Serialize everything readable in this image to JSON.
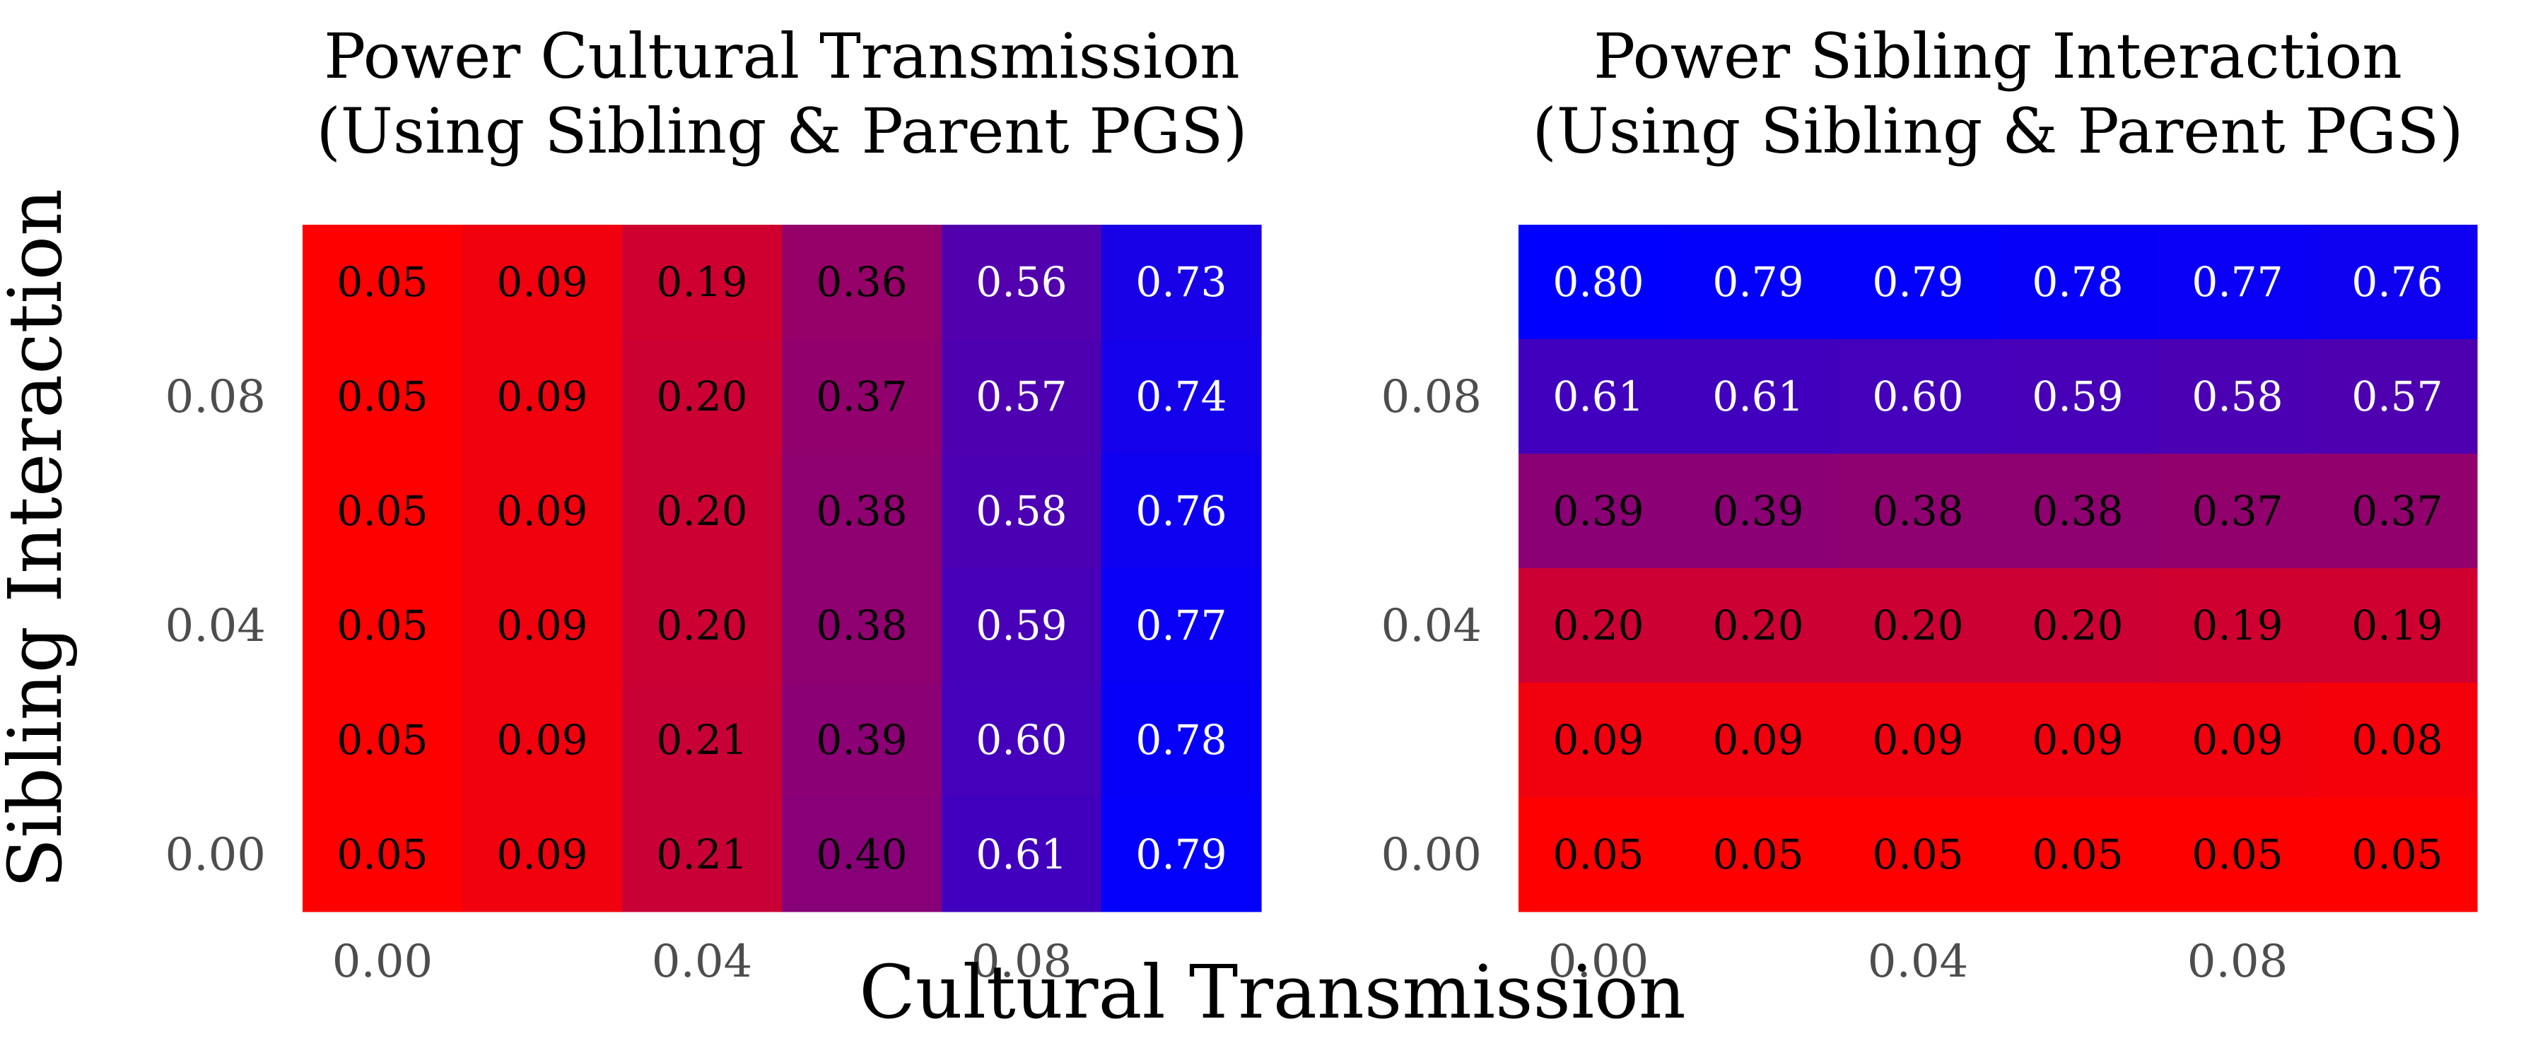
{
  "axis_titles": {
    "x": "Cultural Transmission",
    "y": "Sibling Interaction"
  },
  "chart_data": [
    {
      "type": "heatmap",
      "title_lines": [
        "Power Cultural Transmission",
        "(Using Sibling & Parent PGS)"
      ],
      "xlabel": "Cultural Transmission",
      "ylabel": "Sibling Interaction",
      "x_values": [
        0.0,
        0.02,
        0.04,
        0.06,
        0.08,
        0.1
      ],
      "y_values": [
        0.0,
        0.02,
        0.04,
        0.06,
        0.08,
        0.1
      ],
      "x_tick_labels": [
        {
          "value": 0.0,
          "label": "0.00"
        },
        {
          "value": 0.04,
          "label": "0.04"
        },
        {
          "value": 0.08,
          "label": "0.08"
        }
      ],
      "y_tick_labels": [
        {
          "value": 0.0,
          "label": "0.00"
        },
        {
          "value": 0.04,
          "label": "0.04"
        },
        {
          "value": 0.08,
          "label": "0.08"
        }
      ],
      "values": [
        [
          0.05,
          0.09,
          0.19,
          0.36,
          0.56,
          0.73
        ],
        [
          0.05,
          0.09,
          0.2,
          0.37,
          0.57,
          0.74
        ],
        [
          0.05,
          0.09,
          0.2,
          0.38,
          0.58,
          0.76
        ],
        [
          0.05,
          0.09,
          0.2,
          0.38,
          0.59,
          0.77
        ],
        [
          0.05,
          0.09,
          0.21,
          0.39,
          0.6,
          0.78
        ],
        [
          0.05,
          0.09,
          0.21,
          0.4,
          0.61,
          0.79
        ]
      ],
      "value_labels": [
        [
          "0.05",
          "0.09",
          "0.19",
          "0.36",
          "0.56",
          "0.73"
        ],
        [
          "0.05",
          "0.09",
          "0.20",
          "0.37",
          "0.57",
          "0.74"
        ],
        [
          "0.05",
          "0.09",
          "0.20",
          "0.38",
          "0.58",
          "0.76"
        ],
        [
          "0.05",
          "0.09",
          "0.20",
          "0.38",
          "0.59",
          "0.77"
        ],
        [
          "0.05",
          "0.09",
          "0.21",
          "0.39",
          "0.60",
          "0.78"
        ],
        [
          "0.05",
          "0.09",
          "0.21",
          "0.40",
          "0.61",
          "0.79"
        ]
      ],
      "row_order": "top-to-bottom (y = 0.10 at top, y = 0.00 at bottom)",
      "color_scale": {
        "low": "#ff0000",
        "high": "#0000ff",
        "range": [
          0.05,
          0.8
        ]
      },
      "grid": false,
      "legend": "none"
    },
    {
      "type": "heatmap",
      "title_lines": [
        "Power Sibling Interaction",
        "(Using Sibling & Parent PGS)"
      ],
      "xlabel": "Cultural Transmission",
      "ylabel": "Sibling Interaction",
      "x_values": [
        0.0,
        0.02,
        0.04,
        0.06,
        0.08,
        0.1
      ],
      "y_values": [
        0.0,
        0.02,
        0.04,
        0.06,
        0.08,
        0.1
      ],
      "x_tick_labels": [
        {
          "value": 0.0,
          "label": "0.00"
        },
        {
          "value": 0.04,
          "label": "0.04"
        },
        {
          "value": 0.08,
          "label": "0.08"
        }
      ],
      "y_tick_labels": [
        {
          "value": 0.0,
          "label": "0.00"
        },
        {
          "value": 0.04,
          "label": "0.04"
        },
        {
          "value": 0.08,
          "label": "0.08"
        }
      ],
      "values": [
        [
          0.8,
          0.79,
          0.79,
          0.78,
          0.77,
          0.76
        ],
        [
          0.61,
          0.61,
          0.6,
          0.59,
          0.58,
          0.57
        ],
        [
          0.39,
          0.39,
          0.38,
          0.38,
          0.37,
          0.37
        ],
        [
          0.2,
          0.2,
          0.2,
          0.2,
          0.19,
          0.19
        ],
        [
          0.09,
          0.09,
          0.09,
          0.09,
          0.09,
          0.08
        ],
        [
          0.05,
          0.05,
          0.05,
          0.05,
          0.05,
          0.05
        ]
      ],
      "value_labels": [
        [
          "0.80",
          "0.79",
          "0.79",
          "0.78",
          "0.77",
          "0.76"
        ],
        [
          "0.61",
          "0.61",
          "0.60",
          "0.59",
          "0.58",
          "0.57"
        ],
        [
          "0.39",
          "0.39",
          "0.38",
          "0.38",
          "0.37",
          "0.37"
        ],
        [
          "0.20",
          "0.20",
          "0.20",
          "0.20",
          "0.19",
          "0.19"
        ],
        [
          "0.09",
          "0.09",
          "0.09",
          "0.09",
          "0.09",
          "0.08"
        ],
        [
          "0.05",
          "0.05",
          "0.05",
          "0.05",
          "0.05",
          "0.05"
        ]
      ],
      "row_order": "top-to-bottom (y = 0.10 at top, y = 0.00 at bottom)",
      "color_scale": {
        "low": "#ff0000",
        "high": "#0000ff",
        "range": [
          0.05,
          0.8
        ]
      },
      "grid": false,
      "legend": "none"
    }
  ]
}
